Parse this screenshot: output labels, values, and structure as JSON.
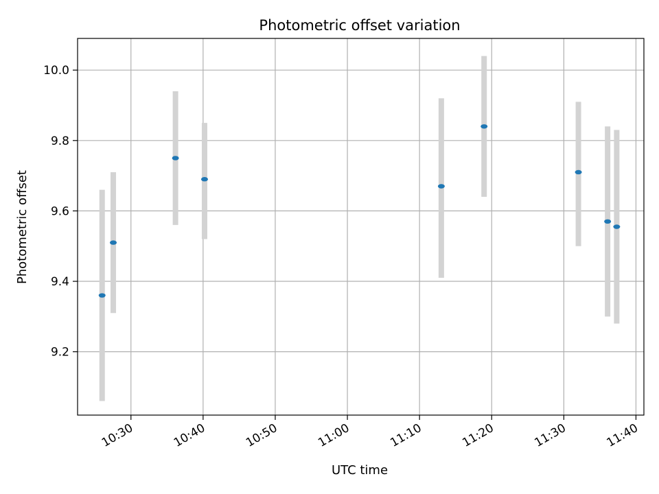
{
  "chart_data": {
    "type": "scatter",
    "title": "Photometric offset variation",
    "xlabel": "UTC time",
    "ylabel": "Photometric offset",
    "x_ticks": [
      "10:30",
      "10:40",
      "10:50",
      "11:00",
      "11:10",
      "11:20",
      "11:30",
      "11:40"
    ],
    "x_tick_minutes": [
      630,
      640,
      650,
      660,
      670,
      680,
      690,
      700
    ],
    "y_ticks": [
      "9.2",
      "9.4",
      "9.6",
      "9.8",
      "10.0"
    ],
    "y_tick_values": [
      9.2,
      9.4,
      9.6,
      9.8,
      10.0
    ],
    "xlim_minutes": [
      622.6,
      701.1
    ],
    "ylim": [
      9.02,
      10.09
    ],
    "grid": true,
    "points": [
      {
        "time": "10:26:00",
        "minutes": 626.0,
        "value": 9.36,
        "low": 9.06,
        "high": 9.66
      },
      {
        "time": "10:27:33",
        "minutes": 627.55,
        "value": 9.51,
        "low": 9.31,
        "high": 9.71
      },
      {
        "time": "10:36:10",
        "minutes": 636.17,
        "value": 9.75,
        "low": 9.56,
        "high": 9.94
      },
      {
        "time": "10:40:12",
        "minutes": 640.2,
        "value": 9.69,
        "low": 9.52,
        "high": 9.85
      },
      {
        "time": "11:13:01",
        "minutes": 673.02,
        "value": 9.67,
        "low": 9.41,
        "high": 9.92
      },
      {
        "time": "11:18:57",
        "minutes": 678.95,
        "value": 9.84,
        "low": 9.64,
        "high": 10.04
      },
      {
        "time": "11:32:01",
        "minutes": 692.02,
        "value": 9.71,
        "low": 9.5,
        "high": 9.91
      },
      {
        "time": "11:36:04",
        "minutes": 696.07,
        "value": 9.57,
        "low": 9.3,
        "high": 9.84
      },
      {
        "time": "11:37:20",
        "minutes": 697.33,
        "value": 9.555,
        "low": 9.28,
        "high": 9.83
      }
    ],
    "colors": {
      "point": "#1f77b4",
      "errorbar": "#d3d3d3",
      "grid": "#b0b0b0",
      "axis": "#000000"
    }
  }
}
